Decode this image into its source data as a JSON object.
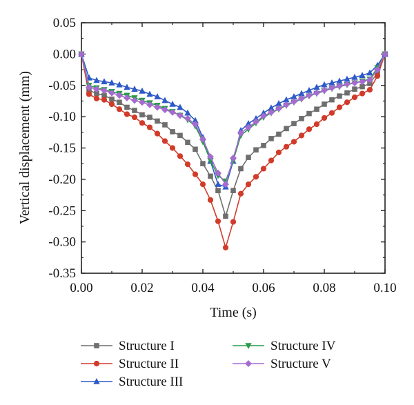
{
  "chart_data": {
    "type": "line",
    "xlabel": "Time (s)",
    "ylabel": "Vertical displacement (mm)",
    "xlim": [
      0,
      0.1
    ],
    "ylim": [
      -0.35,
      0.05
    ],
    "xticks": [
      "0.00",
      "0.02",
      "0.04",
      "0.06",
      "0.08",
      "0.10"
    ],
    "yticks": [
      "0.05",
      "0.00",
      "-0.05",
      "-0.10",
      "-0.15",
      "-0.20",
      "-0.25",
      "-0.30",
      "-0.35"
    ],
    "grid": false,
    "legend_position": "bottom",
    "x": [
      0,
      0.0025,
      0.005,
      0.0075,
      0.01,
      0.0125,
      0.015,
      0.0175,
      0.02,
      0.0225,
      0.025,
      0.0275,
      0.03,
      0.0325,
      0.035,
      0.0375,
      0.04,
      0.0425,
      0.045,
      0.0475,
      0.05,
      0.0525,
      0.055,
      0.0575,
      0.06,
      0.0625,
      0.065,
      0.0675,
      0.07,
      0.0725,
      0.075,
      0.0775,
      0.08,
      0.0825,
      0.085,
      0.0875,
      0.09,
      0.0925,
      0.095,
      0.0975,
      0.1
    ],
    "series": [
      {
        "name": "Structure I",
        "color": "#6e6e6e",
        "marker": "square",
        "values": [
          0.0,
          -0.058,
          -0.063,
          -0.066,
          -0.072,
          -0.077,
          -0.085,
          -0.09,
          -0.097,
          -0.101,
          -0.107,
          -0.113,
          -0.124,
          -0.13,
          -0.141,
          -0.152,
          -0.175,
          -0.195,
          -0.218,
          -0.259,
          -0.218,
          -0.183,
          -0.165,
          -0.153,
          -0.146,
          -0.135,
          -0.128,
          -0.119,
          -0.111,
          -0.103,
          -0.095,
          -0.088,
          -0.08,
          -0.073,
          -0.067,
          -0.062,
          -0.056,
          -0.052,
          -0.047,
          -0.03,
          0.0
        ]
      },
      {
        "name": "Structure II",
        "color": "#d13b2a",
        "marker": "circle",
        "values": [
          0.0,
          -0.064,
          -0.071,
          -0.073,
          -0.08,
          -0.088,
          -0.096,
          -0.101,
          -0.11,
          -0.117,
          -0.127,
          -0.139,
          -0.15,
          -0.163,
          -0.176,
          -0.192,
          -0.208,
          -0.233,
          -0.267,
          -0.309,
          -0.268,
          -0.223,
          -0.208,
          -0.196,
          -0.183,
          -0.17,
          -0.157,
          -0.148,
          -0.14,
          -0.13,
          -0.12,
          -0.112,
          -0.102,
          -0.094,
          -0.085,
          -0.077,
          -0.069,
          -0.063,
          -0.057,
          -0.035,
          0.0
        ]
      },
      {
        "name": "Structure III",
        "color": "#2e5ac8",
        "marker": "triangle",
        "values": [
          0.0,
          -0.038,
          -0.042,
          -0.044,
          -0.046,
          -0.049,
          -0.053,
          -0.056,
          -0.059,
          -0.064,
          -0.068,
          -0.074,
          -0.08,
          -0.085,
          -0.094,
          -0.106,
          -0.133,
          -0.171,
          -0.208,
          -0.212,
          -0.171,
          -0.122,
          -0.111,
          -0.103,
          -0.094,
          -0.086,
          -0.079,
          -0.073,
          -0.068,
          -0.063,
          -0.058,
          -0.053,
          -0.049,
          -0.046,
          -0.043,
          -0.04,
          -0.037,
          -0.034,
          -0.03,
          -0.018,
          0.0
        ]
      },
      {
        "name": "Structure IV",
        "color": "#2a9a4a",
        "marker": "triangle-down",
        "values": [
          0.0,
          -0.05,
          -0.054,
          -0.057,
          -0.06,
          -0.063,
          -0.066,
          -0.07,
          -0.074,
          -0.078,
          -0.082,
          -0.087,
          -0.092,
          -0.098,
          -0.105,
          -0.115,
          -0.14,
          -0.17,
          -0.194,
          -0.203,
          -0.17,
          -0.13,
          -0.12,
          -0.11,
          -0.101,
          -0.094,
          -0.088,
          -0.082,
          -0.077,
          -0.072,
          -0.067,
          -0.063,
          -0.059,
          -0.055,
          -0.052,
          -0.049,
          -0.046,
          -0.043,
          -0.04,
          -0.022,
          0.0
        ]
      },
      {
        "name": "Structure V",
        "color": "#a66bd0",
        "marker": "diamond",
        "values": [
          0.0,
          -0.053,
          -0.056,
          -0.058,
          -0.062,
          -0.066,
          -0.07,
          -0.074,
          -0.077,
          -0.081,
          -0.085,
          -0.089,
          -0.093,
          -0.098,
          -0.103,
          -0.112,
          -0.136,
          -0.164,
          -0.19,
          -0.208,
          -0.166,
          -0.126,
          -0.117,
          -0.108,
          -0.099,
          -0.093,
          -0.087,
          -0.081,
          -0.076,
          -0.071,
          -0.066,
          -0.062,
          -0.058,
          -0.054,
          -0.051,
          -0.048,
          -0.046,
          -0.044,
          -0.041,
          -0.025,
          0.0
        ]
      }
    ]
  }
}
